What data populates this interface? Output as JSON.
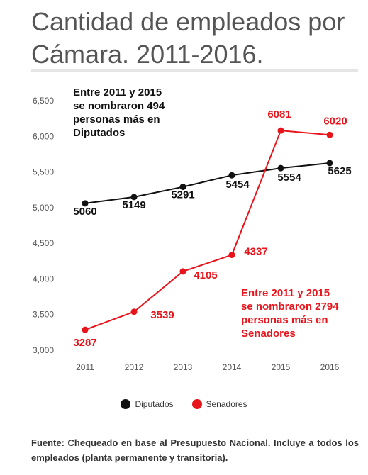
{
  "title": "Cantidad de empleados por Cámara. 2011-2016.",
  "source": "Fuente: Chequeado en base al Presupuesto Nacional. Incluye a todos los empleados (planta permanente y transitoria).",
  "chart_data": {
    "type": "line",
    "x": [
      "2011",
      "2012",
      "2013",
      "2014",
      "2015",
      "2016"
    ],
    "ylim": [
      3000,
      6500
    ],
    "yticks": [
      3000,
      3500,
      4000,
      4500,
      5000,
      5500,
      6000,
      6500
    ],
    "ytick_labels": [
      "3,000",
      "3,500",
      "4,000",
      "4,500",
      "5,000",
      "5,500",
      "6,000",
      "6,500"
    ],
    "series": [
      {
        "name": "Diputados",
        "color": "#111111",
        "values": [
          5060,
          5149,
          5291,
          5454,
          5554,
          5625
        ]
      },
      {
        "name": "Senadores",
        "color": "#e8141b",
        "values": [
          3287,
          3539,
          4105,
          4337,
          6081,
          6020
        ]
      }
    ],
    "annotations": [
      {
        "series": "Diputados",
        "lines": [
          "Entre 2011 y 2015",
          "se nombraron 494",
          "personas más en",
          "Diputados"
        ],
        "color": "#111111"
      },
      {
        "series": "Senadores",
        "lines": [
          "Entre 2011 y 2015",
          "se nombraron 2794",
          "personas más en",
          "Senadores"
        ],
        "color": "#e8141b"
      }
    ],
    "legend": "bottom",
    "grid": false
  }
}
